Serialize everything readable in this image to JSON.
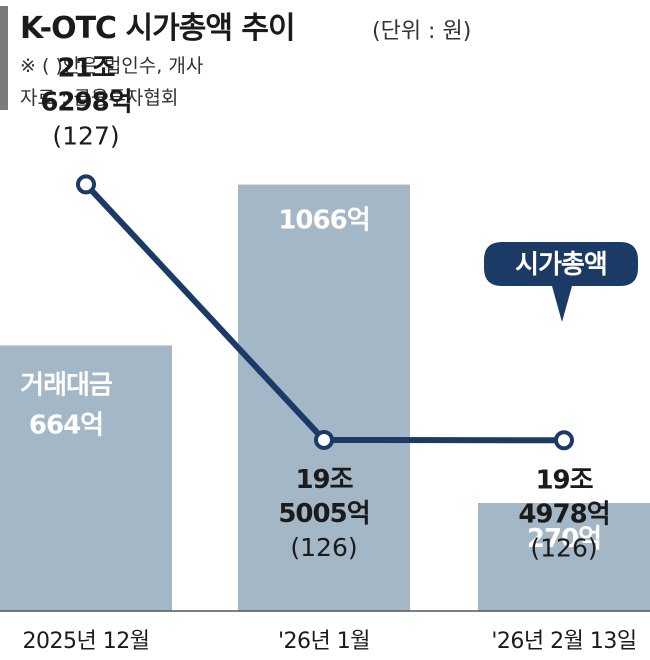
{
  "header": {
    "title": "K-OTC 시가총액 추이",
    "unit": "(단위 : 원)",
    "note": "※ (   )안은 법인수, 개사",
    "source": "자료 : 금융투자협회"
  },
  "chart_data": {
    "type": "bar+line",
    "categories": [
      "2025년 12월",
      "'26년 1월",
      "'26년 2월 13일"
    ],
    "series": [
      {
        "name": "거래대금",
        "kind": "bar",
        "values": [
          664,
          1066,
          270
        ],
        "unit": "억",
        "value_labels": [
          "664억",
          "1066억",
          "270억"
        ]
      },
      {
        "name": "시가총액",
        "kind": "line",
        "values": [
          216298,
          195005,
          194978
        ],
        "unit": "억",
        "value_labels": [
          [
            "21조",
            "6298억"
          ],
          [
            "19조",
            "5005억"
          ],
          [
            "19조",
            "4978억"
          ]
        ],
        "company_counts": [
          127,
          126,
          126
        ],
        "count_labels": [
          "(127)",
          "(126)",
          "(126)"
        ]
      }
    ],
    "first_bar_series_label": "거래대금",
    "line_callout": "시가총액",
    "bar_ylim": [
      0,
      1200
    ],
    "line_ylim": [
      180000,
      225000
    ],
    "grid": false,
    "legend": "none"
  },
  "colors": {
    "bar": "#a3b7c6",
    "line": "#1c3a66",
    "text": "#1b1b1b",
    "title_bar": "#7a7a7a"
  }
}
